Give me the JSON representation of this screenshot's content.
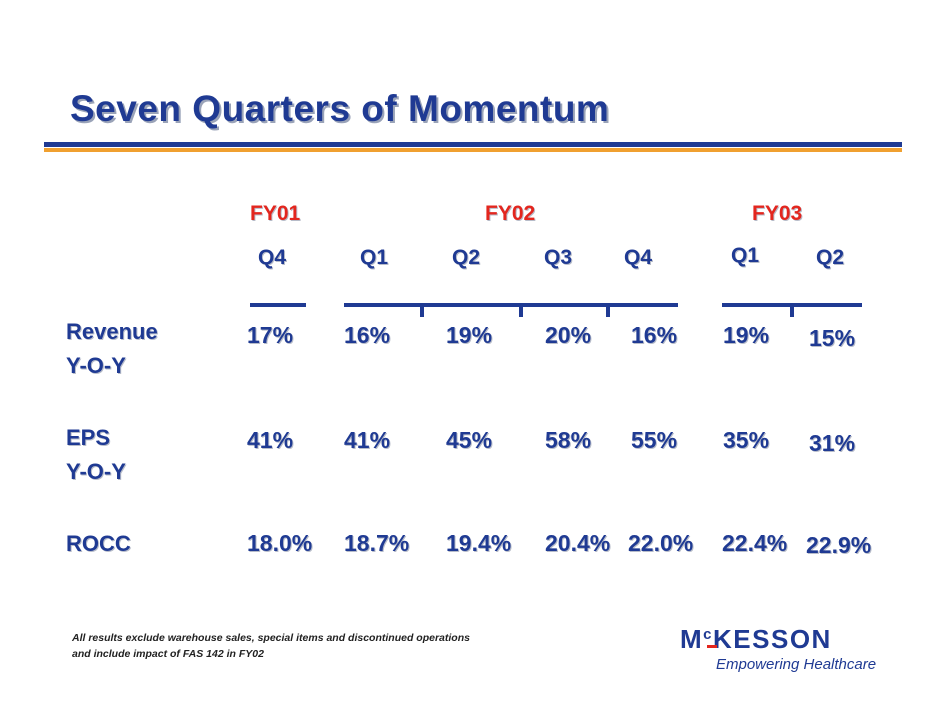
{
  "title": "Seven Quarters of Momentum",
  "fiscal_years": [
    "FY01",
    "FY02",
    "FY03"
  ],
  "quarters": [
    "Q4",
    "Q1",
    "Q2",
    "Q3",
    "Q4",
    "Q1",
    "Q2"
  ],
  "rows": [
    {
      "label_lines": [
        "Revenue",
        "Y-O-Y"
      ],
      "values": [
        "17%",
        "16%",
        "19%",
        "20%",
        "16%",
        "19%",
        "15%"
      ]
    },
    {
      "label_lines": [
        "EPS",
        "Y-O-Y"
      ],
      "values": [
        "41%",
        "41%",
        "45%",
        "58%",
        "55%",
        "35%",
        "31%"
      ]
    },
    {
      "label_lines": [
        "ROCC"
      ],
      "values": [
        "18.0%",
        "18.7%",
        "19.4%",
        "20.4%",
        "22.0%",
        "22.4%",
        "22.9%"
      ]
    }
  ],
  "footnote": {
    "line1": "All results exclude warehouse sales, special items and discontinued operations",
    "line2": "and include impact of FAS 142 in FY02"
  },
  "logo": {
    "name_prefix": "M",
    "name_sup": "c",
    "name_rest": "KESSON",
    "tagline": "Empowering Healthcare"
  },
  "colors": {
    "primary_blue": "#1f3a93",
    "fiscal_red": "#e3261e",
    "accent_orange": "#f0a030"
  }
}
